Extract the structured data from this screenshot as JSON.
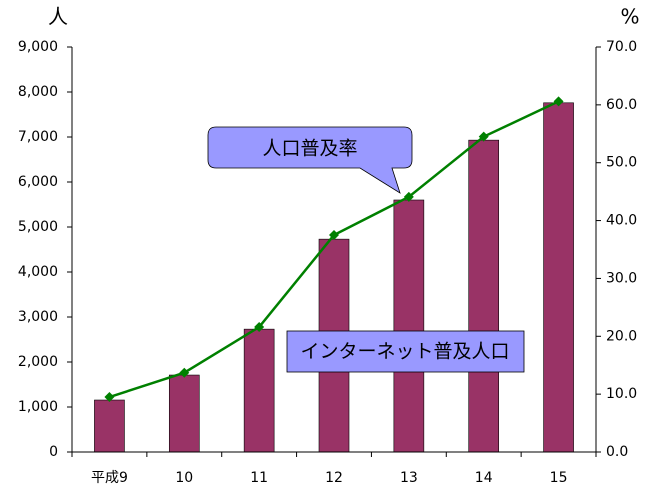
{
  "chart_data": {
    "type": "bar",
    "categories": [
      "平成9",
      "10",
      "11",
      "12",
      "13",
      "14",
      "15"
    ],
    "y_label": "人",
    "y2_label": "%",
    "series": [
      {
        "name": "インターネット普及人口",
        "color": "#993366",
        "values": [
          1155,
          1710,
          2730,
          4730,
          5600,
          6930,
          7760
        ]
      },
      {
        "name": "人口普及率",
        "color": "#008000",
        "axis": "y2",
        "type": "line",
        "values": [
          9.5,
          13.7,
          21.6,
          37.5,
          44.1,
          54.5,
          60.6
        ]
      }
    ],
    "ylim": [
      0,
      9000
    ],
    "yticks": [
      0,
      {
        "value": 1000,
        "label": "1,000"
      },
      {
        "value": 2000,
        "label": "2,000"
      },
      {
        "value": 3000,
        "label": "3,000"
      },
      {
        "value": 4000,
        "label": "4,000"
      },
      {
        "value": 5000,
        "label": "5,000"
      },
      {
        "value": 6000,
        "label": "6,000"
      },
      {
        "value": 7000,
        "label": "7,000"
      },
      {
        "value": 8000,
        "label": "8,000"
      },
      {
        "value": 9000,
        "label": "9,000"
      }
    ],
    "y2lim": [
      0,
      70
    ],
    "y2ticks": [
      {
        "value": 0,
        "label": "0.0"
      },
      {
        "value": 10,
        "label": "10.0"
      },
      {
        "value": 20,
        "label": "20.0"
      },
      {
        "value": 30,
        "label": "30.0"
      },
      {
        "value": 40,
        "label": "40.0"
      },
      {
        "value": 50,
        "label": "50.0"
      },
      {
        "value": 60,
        "label": "60.0"
      },
      {
        "value": 70,
        "label": "70.0"
      }
    ],
    "grid": false
  }
}
